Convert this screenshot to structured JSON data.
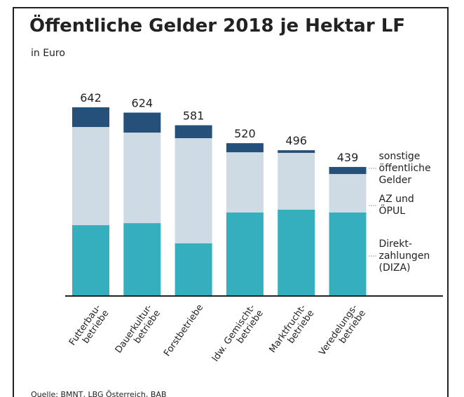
{
  "chart_data": {
    "type": "stacked_bar",
    "title": "Öffentliche Gelder 2018 je Hektar LF",
    "subtitle": "in Euro",
    "source": "Quelle: BMNT, LBG Österreich, BAB",
    "categories": [
      "Futterbau-\nbetriebe",
      "Dauerkultur-\nbetriebe",
      "Forstbetriebe",
      "ldw. Gemischt-\nbetriebe",
      "Marktfrucht-\nbetriebe",
      "Veredelungs-\nbetriebe"
    ],
    "totals": [
      642,
      624,
      581,
      520,
      496,
      439
    ],
    "series": [
      {
        "name": "Direkt-\nzahlungen\n(DIZA)",
        "color": "#35afbd",
        "values": [
          241,
          248,
          179,
          284,
          294,
          284
        ]
      },
      {
        "name": "AZ und\nÖPUL",
        "color": "#cfdbe4",
        "values": [
          334,
          308,
          358,
          205,
          193,
          131
        ]
      },
      {
        "name": "sonstige\nöffentliche\nGelder",
        "color": "#24507a",
        "values": [
          67,
          68,
          44,
          31,
          9,
          24
        ]
      }
    ]
  }
}
